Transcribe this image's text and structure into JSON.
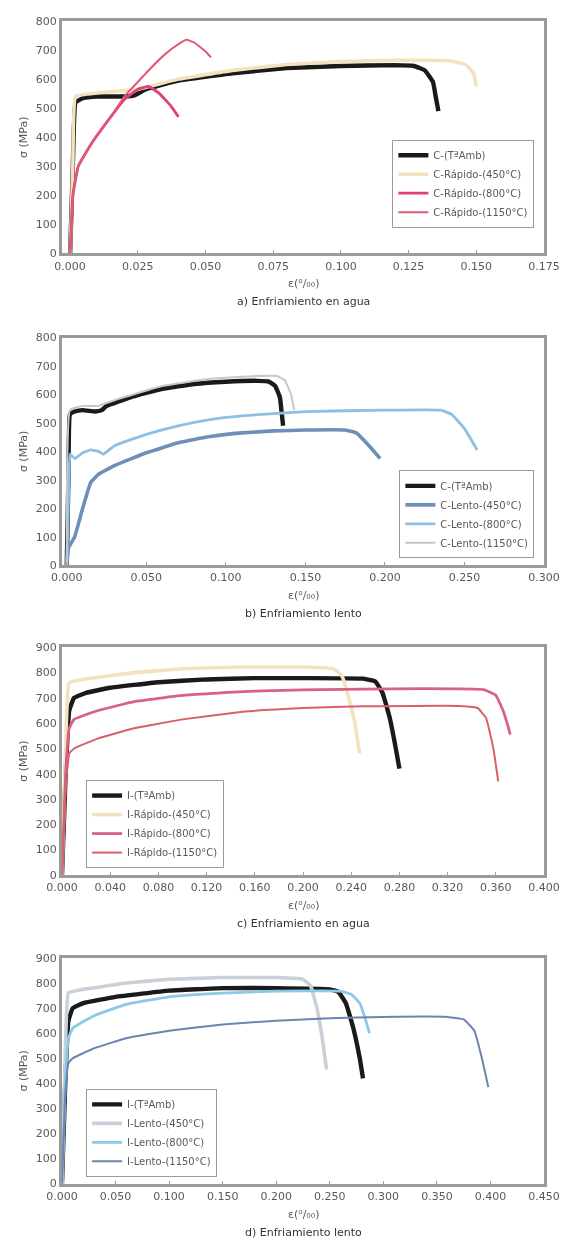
{
  "chart_data": [
    {
      "type": "line",
      "xlabel": "ε(⁰/₀₀)",
      "ylabel": "σ (MPa)",
      "annotations": [
        "a) Enfriamiento en agua"
      ],
      "xlim": [
        -0.003,
        0.175
      ],
      "xticks": [
        {
          "value": 0,
          "label": "0.000"
        },
        {
          "value": 0.025,
          "label": "0.025"
        },
        {
          "value": 0.05,
          "label": "0.050"
        },
        {
          "value": 0.075,
          "label": "0.075"
        },
        {
          "value": 0.1,
          "label": "0.100"
        },
        {
          "value": 0.125,
          "label": "0.125"
        },
        {
          "value": 0.15,
          "label": "0.150"
        },
        {
          "value": 0.175,
          "label": "0.175"
        }
      ],
      "ylim": [
        0,
        800
      ],
      "yticks": [
        0,
        100,
        200,
        300,
        400,
        500,
        600,
        700,
        800
      ],
      "grid": false,
      "legend": "right",
      "marker": "none",
      "line_style": "solid",
      "series": [
        {
          "name": "C-(TªAmb)",
          "color": "#1a1a1a",
          "x": [
            0,
            0.001,
            0.002,
            0.005,
            0.01,
            0.02,
            0.024,
            0.028,
            0.04,
            0.06,
            0.08,
            0.1,
            0.12,
            0.127,
            0.131,
            0.134,
            0.135,
            0.136
          ],
          "values": [
            0,
            300,
            520,
            535,
            540,
            540,
            545,
            565,
            595,
            620,
            638,
            645,
            648,
            645,
            630,
            590,
            540,
            490
          ]
        },
        {
          "name": "C-Rápido-(450°C)",
          "color": "#f3e2bd",
          "x": [
            0,
            0.001,
            0.002,
            0.01,
            0.025,
            0.04,
            0.06,
            0.08,
            0.1,
            0.12,
            0.14,
            0.146,
            0.149,
            0.15
          ],
          "values": [
            0,
            300,
            540,
            552,
            565,
            600,
            630,
            650,
            660,
            665,
            663,
            650,
            620,
            575
          ]
        },
        {
          "name": "C-Rápido-(800°C)",
          "color": "#e0407a",
          "x": [
            0,
            0.001,
            0.003,
            0.008,
            0.015,
            0.02,
            0.025,
            0.029,
            0.033,
            0.037,
            0.04
          ],
          "values": [
            0,
            200,
            300,
            380,
            470,
            530,
            565,
            575,
            550,
            510,
            470
          ]
        },
        {
          "name": "C-Rápido-(1150°C)",
          "color": "#e05a74",
          "x": [
            0,
            0.001,
            0.003,
            0.008,
            0.015,
            0.02,
            0.025,
            0.03,
            0.035,
            0.04,
            0.043,
            0.046,
            0.05,
            0.052
          ],
          "values": [
            0,
            200,
            300,
            380,
            470,
            540,
            590,
            640,
            685,
            720,
            735,
            725,
            695,
            675
          ]
        }
      ]
    },
    {
      "type": "line",
      "xlabel": "ε(⁰/₀₀)",
      "ylabel": "σ (MPa)",
      "annotations": [
        "b) Enfriamiento lento"
      ],
      "xlim": [
        -0.003,
        0.3
      ],
      "xticks": [
        {
          "value": 0,
          "label": "0.000"
        },
        {
          "value": 0.05,
          "label": "0.050"
        },
        {
          "value": 0.1,
          "label": "0.100"
        },
        {
          "value": 0.15,
          "label": "0.150"
        },
        {
          "value": 0.2,
          "label": "0.200"
        },
        {
          "value": 0.25,
          "label": "0.250"
        },
        {
          "value": 0.3,
          "label": "0.300"
        }
      ],
      "ylim": [
        0,
        800
      ],
      "yticks": [
        0,
        100,
        200,
        300,
        400,
        500,
        600,
        700,
        800
      ],
      "grid": false,
      "legend": "bottom right",
      "marker": "none",
      "line_style": "solid",
      "series": [
        {
          "name": "C-(TªAmb)",
          "color": "#1a1a1a",
          "x": [
            0,
            0.001,
            0.002,
            0.005,
            0.01,
            0.018,
            0.022,
            0.025,
            0.04,
            0.06,
            0.08,
            0.1,
            0.12,
            0.127,
            0.131,
            0.134,
            0.135,
            0.136
          ],
          "values": [
            0,
            300,
            530,
            540,
            545,
            540,
            545,
            560,
            590,
            620,
            637,
            645,
            648,
            645,
            630,
            590,
            540,
            490
          ]
        },
        {
          "name": "C-Lento-(450°C)",
          "color": "#6f8fb8",
          "x": [
            0,
            0.001,
            0.005,
            0.01,
            0.015,
            0.02,
            0.03,
            0.05,
            0.07,
            0.09,
            0.11,
            0.13,
            0.15,
            0.175,
            0.182,
            0.19,
            0.197
          ],
          "values": [
            0,
            60,
            100,
            200,
            290,
            320,
            350,
            395,
            430,
            452,
            465,
            472,
            475,
            475,
            465,
            420,
            375
          ]
        },
        {
          "name": "C-Lento-(800°C)",
          "color": "#8cc0e4",
          "x": [
            0,
            0.001,
            0.002,
            0.005,
            0.01,
            0.015,
            0.02,
            0.023,
            0.03,
            0.05,
            0.07,
            0.09,
            0.11,
            0.15,
            0.2,
            0.235,
            0.242,
            0.25,
            0.258
          ],
          "values": [
            0,
            200,
            390,
            375,
            395,
            405,
            400,
            390,
            420,
            460,
            490,
            512,
            525,
            540,
            545,
            545,
            530,
            480,
            405
          ]
        },
        {
          "name": "C-Lento-(1150°C)",
          "color": "#c4c8cc",
          "x": [
            0,
            0.002,
            0.01,
            0.02,
            0.03,
            0.06,
            0.09,
            0.12,
            0.132,
            0.137,
            0.141,
            0.143
          ],
          "values": [
            0,
            545,
            560,
            560,
            580,
            630,
            655,
            665,
            665,
            650,
            600,
            545
          ]
        }
      ]
    },
    {
      "type": "line",
      "xlabel": "ε(⁰/₀₀)",
      "ylabel": "σ (MPa)",
      "annotations": [
        "c) Enfriamiento en agua"
      ],
      "xlim": [
        0,
        0.4
      ],
      "xticks": [
        {
          "value": 0,
          "label": "0.000"
        },
        {
          "value": 0.04,
          "label": "0.040"
        },
        {
          "value": 0.08,
          "label": "0.080"
        },
        {
          "value": 0.12,
          "label": "0.120"
        },
        {
          "value": 0.16,
          "label": "0.160"
        },
        {
          "value": 0.2,
          "label": "0.200"
        },
        {
          "value": 0.24,
          "label": "0.240"
        },
        {
          "value": 0.28,
          "label": "0.280"
        },
        {
          "value": 0.32,
          "label": "0.320"
        },
        {
          "value": 0.36,
          "label": "0.360"
        },
        {
          "value": 0.4,
          "label": "0.400"
        }
      ],
      "ylim": [
        0,
        900
      ],
      "yticks": [
        0,
        100,
        200,
        300,
        400,
        500,
        600,
        700,
        800,
        900
      ],
      "grid": false,
      "legend": "bottom left",
      "marker": "none",
      "line_style": "solid",
      "series": [
        {
          "name": "I-(TªAmb)",
          "color": "#1a1a1a",
          "x": [
            0,
            0.003,
            0.006,
            0.01,
            0.02,
            0.04,
            0.08,
            0.12,
            0.16,
            0.2,
            0.25,
            0.26,
            0.266,
            0.272,
            0.277,
            0.28
          ],
          "values": [
            0,
            400,
            650,
            700,
            720,
            740,
            762,
            773,
            778,
            778,
            776,
            765,
            720,
            620,
            500,
            420
          ]
        },
        {
          "name": "I-Rápido-(450°C)",
          "color": "#f3e2bd",
          "x": [
            0,
            0.003,
            0.006,
            0.02,
            0.06,
            0.1,
            0.15,
            0.2,
            0.225,
            0.232,
            0.238,
            0.243,
            0.247
          ],
          "values": [
            0,
            500,
            760,
            775,
            800,
            815,
            822,
            822,
            815,
            790,
            700,
            600,
            480
          ]
        },
        {
          "name": "I-Rápido-(800°C)",
          "color": "#d9608a",
          "x": [
            0,
            0.003,
            0.006,
            0.01,
            0.03,
            0.06,
            0.1,
            0.15,
            0.2,
            0.3,
            0.35,
            0.36,
            0.366,
            0.37,
            0.372
          ],
          "values": [
            0,
            400,
            580,
            615,
            650,
            685,
            710,
            725,
            732,
            737,
            733,
            710,
            650,
            590,
            555
          ]
        },
        {
          "name": "I-Rápido-(1150°C)",
          "color": "#d8606a",
          "x": [
            0,
            0.003,
            0.006,
            0.01,
            0.03,
            0.06,
            0.1,
            0.15,
            0.2,
            0.25,
            0.33,
            0.345,
            0.352,
            0.358,
            0.362
          ],
          "values": [
            0,
            350,
            480,
            500,
            540,
            580,
            615,
            645,
            660,
            667,
            668,
            660,
            620,
            500,
            370
          ]
        }
      ]
    },
    {
      "type": "line",
      "xlabel": "ε(⁰/₀₀)",
      "ylabel": "σ (MPa)",
      "annotations": [
        "d) Enfriamiento lento"
      ],
      "xlim": [
        0,
        0.45
      ],
      "xticks": [
        {
          "value": 0,
          "label": "0.000"
        },
        {
          "value": 0.05,
          "label": "0.050"
        },
        {
          "value": 0.1,
          "label": "0.100"
        },
        {
          "value": 0.15,
          "label": "0.150"
        },
        {
          "value": 0.2,
          "label": "0.200"
        },
        {
          "value": 0.25,
          "label": "0.250"
        },
        {
          "value": 0.3,
          "label": "0.300"
        },
        {
          "value": 0.35,
          "label": "0.350"
        },
        {
          "value": 0.4,
          "label": "0.400"
        },
        {
          "value": 0.45,
          "label": "0.450"
        }
      ],
      "ylim": [
        0,
        900
      ],
      "yticks": [
        0,
        100,
        200,
        300,
        400,
        500,
        600,
        700,
        800,
        900
      ],
      "grid": false,
      "legend": "bottom left",
      "marker": "none",
      "line_style": "solid",
      "series": [
        {
          "name": "I-(TªAmb)",
          "color": "#1a1a1a",
          "x": [
            0,
            0.003,
            0.006,
            0.01,
            0.02,
            0.05,
            0.1,
            0.15,
            0.2,
            0.25,
            0.258,
            0.265,
            0.272,
            0.278,
            0.281
          ],
          "values": [
            0,
            400,
            650,
            700,
            720,
            745,
            770,
            780,
            780,
            775,
            765,
            720,
            620,
            500,
            420
          ]
        },
        {
          "name": "I-Lento-(450°C)",
          "color": "#c8d0d8",
          "x": [
            0,
            0.003,
            0.006,
            0.02,
            0.06,
            0.1,
            0.15,
            0.2,
            0.225,
            0.232,
            0.238,
            0.243,
            0.247
          ],
          "values": [
            0,
            500,
            760,
            775,
            800,
            815,
            822,
            822,
            815,
            790,
            700,
            580,
            455
          ]
        },
        {
          "name": "I-Lento-(800°C)",
          "color": "#8cc8e8",
          "x": [
            0,
            0.003,
            0.006,
            0.01,
            0.03,
            0.06,
            0.1,
            0.15,
            0.2,
            0.26,
            0.27,
            0.278,
            0.283,
            0.287
          ],
          "values": [
            0,
            400,
            580,
            620,
            670,
            715,
            745,
            760,
            768,
            768,
            755,
            720,
            660,
            600
          ]
        },
        {
          "name": "I-Lento-(1150°C)",
          "color": "#6a86b0",
          "x": [
            0,
            0.003,
            0.006,
            0.01,
            0.03,
            0.06,
            0.1,
            0.15,
            0.2,
            0.25,
            0.3,
            0.36,
            0.375,
            0.385,
            0.392,
            0.398
          ],
          "values": [
            0,
            350,
            480,
            500,
            540,
            580,
            610,
            635,
            650,
            660,
            665,
            665,
            655,
            610,
            500,
            385
          ]
        }
      ]
    }
  ]
}
